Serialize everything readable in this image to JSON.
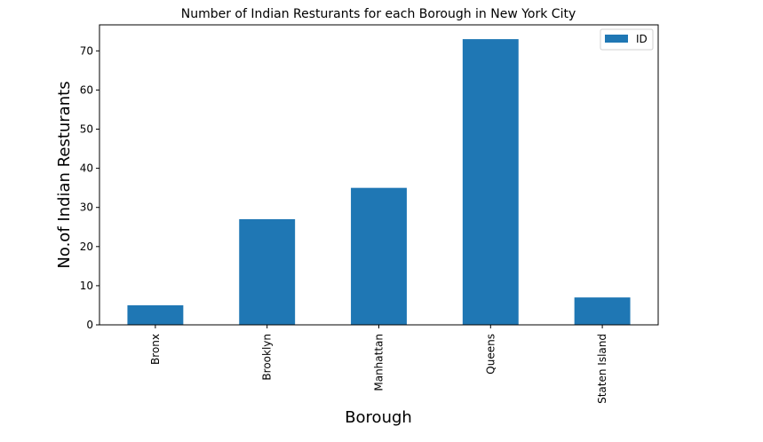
{
  "chart_data": {
    "type": "bar",
    "title": "Number of Indian Resturants for each Borough in New York City",
    "xlabel": "Borough",
    "ylabel": "No.of Indian Resturants",
    "categories": [
      "Bronx",
      "Brooklyn",
      "Manhattan",
      "Queens",
      "Staten Island"
    ],
    "series": [
      {
        "name": "ID",
        "values": [
          5,
          27,
          35,
          73,
          7
        ],
        "color": "#1f77b4"
      }
    ],
    "ylim": [
      0,
      76.65
    ],
    "yticks": [
      0,
      10,
      20,
      30,
      40,
      50,
      60,
      70
    ],
    "grid": false,
    "legend": "top-right"
  }
}
